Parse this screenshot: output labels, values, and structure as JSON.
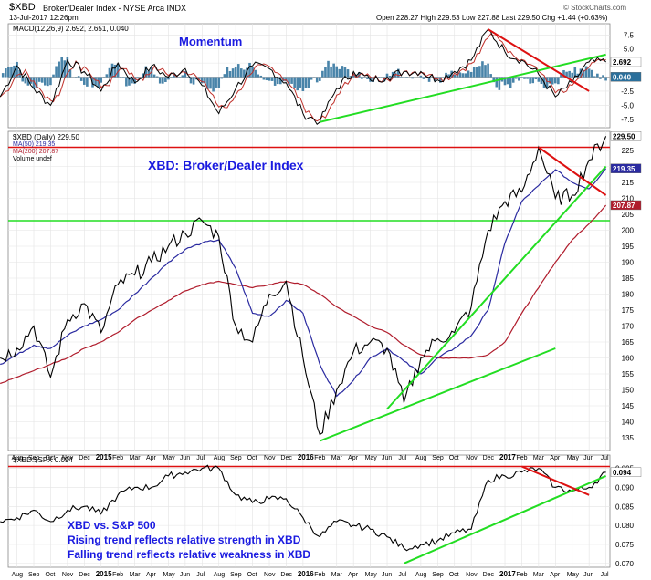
{
  "header": {
    "symbol": "$XBD",
    "name": "Broker/Dealer Index - NYSE Arca INDX",
    "date": "13-Jul-2017 12:26pm",
    "quote": "Open 228.27  High 229.53  Low 227.88  Last 229.50  Chg +1.44 (+0.63%)",
    "logo": "© StockCharts.com"
  },
  "colors": {
    "price": "#000000",
    "ma50": "#2a2aa0",
    "ma200": "#b01c2c",
    "trend_up": "#22dd22",
    "trend_down": "#dd1111",
    "macd_hist": "#2a6f9b",
    "annotation": "#1a1ae0"
  },
  "macd_panel": {
    "legend": "MACD(12,26,9) 2.692, 2.651, 0.040",
    "annotation": "Momentum",
    "value_labels": [
      "2.692",
      "0.040"
    ]
  },
  "price_panel": {
    "legend": [
      "$XBD (Daily) 229.50",
      "MA(50) 219.35",
      "MA(200) 207.87",
      "Volume undef"
    ],
    "annotation": "XBD: Broker/Dealer Index",
    "value_labels": [
      "229.50",
      "219.35",
      "207.87"
    ]
  },
  "ratio_panel": {
    "legend": "$XBD:$SPX 0.094",
    "annotation_lines": [
      "XBD vs. S&P 500",
      "Rising trend reflects relative strength in XBD",
      "Falling trend reflects relative weakness in XBD"
    ],
    "value_labels": [
      "0.094"
    ]
  },
  "chart_data": [
    {
      "type": "line",
      "title": "MACD(12,26,9)",
      "ylim": [
        -9,
        9.5
      ],
      "yticks": [
        "7.5",
        "5.0",
        "2.5",
        "0.0",
        "-2.5",
        "-5.0",
        "-7.5"
      ],
      "macd_points": [
        [
          "2014-07",
          -3.5
        ],
        [
          "2014-08",
          2
        ],
        [
          "2014-09",
          -2
        ],
        [
          "2014-10",
          -5
        ],
        [
          "2014-11",
          3
        ],
        [
          "2014-12",
          1
        ],
        [
          "2015-01",
          -2.5
        ],
        [
          "2015-02",
          2.5
        ],
        [
          "2015-03",
          -1
        ],
        [
          "2015-04",
          2
        ],
        [
          "2015-05",
          0
        ],
        [
          "2015-06",
          1.5
        ],
        [
          "2015-07",
          -1.5
        ],
        [
          "2015-08",
          -6.5
        ],
        [
          "2015-09",
          -2
        ],
        [
          "2015-10",
          2
        ],
        [
          "2015-11",
          1.5
        ],
        [
          "2015-12",
          -1
        ],
        [
          "2016-01",
          -6.5
        ],
        [
          "2016-02",
          -8
        ],
        [
          "2016-03",
          -2
        ],
        [
          "2016-04",
          1
        ],
        [
          "2016-05",
          -0.5
        ],
        [
          "2016-06",
          0
        ],
        [
          "2016-07",
          1
        ],
        [
          "2016-08",
          1
        ],
        [
          "2016-09",
          -0.5
        ],
        [
          "2016-10",
          1
        ],
        [
          "2016-11",
          3
        ],
        [
          "2016-12",
          8.5
        ],
        [
          "2017-01",
          4.5
        ],
        [
          "2017-02",
          3
        ],
        [
          "2017-03",
          0.5
        ],
        [
          "2017-04",
          -3.5
        ],
        [
          "2017-05",
          -1
        ],
        [
          "2017-06",
          2.7
        ],
        [
          "2017-07",
          2.69
        ]
      ],
      "trendlines": [
        {
          "color": "trend_up",
          "from": [
            "2016-02",
            -8
          ],
          "to": [
            "2017-07",
            4
          ]
        },
        {
          "color": "trend_down",
          "from": [
            "2016-12",
            8.5
          ],
          "to": [
            "2017-06",
            -2.5
          ]
        }
      ]
    },
    {
      "type": "line",
      "title": "XBD: Broker/Dealer Index",
      "ylim": [
        131,
        231
      ],
      "yticks": [
        "225",
        "220",
        "215",
        "210",
        "205",
        "200",
        "195",
        "190",
        "185",
        "180",
        "175",
        "170",
        "165",
        "160",
        "155",
        "150",
        "145",
        "140",
        "135"
      ],
      "x_tick_labels": [
        "Aug",
        "Sep",
        "Oct",
        "Nov",
        "Dec",
        "2015",
        "Feb",
        "Mar",
        "Apr",
        "May",
        "Jun",
        "Jul",
        "Aug",
        "Sep",
        "Oct",
        "Nov",
        "Dec",
        "2016",
        "Feb",
        "Mar",
        "Apr",
        "May",
        "Jun",
        "Jul",
        "Aug",
        "Sep",
        "Oct",
        "Nov",
        "Dec",
        "2017",
        "Feb",
        "Mar",
        "Apr",
        "May",
        "Jun",
        "Jul"
      ],
      "series": [
        {
          "name": "$XBD",
          "points": [
            [
              "2014-07",
              160
            ],
            [
              "2014-08",
              163
            ],
            [
              "2014-09",
              170
            ],
            [
              "2014-10",
              154
            ],
            [
              "2014-11",
              172
            ],
            [
              "2014-12",
              177
            ],
            [
              "2015-01",
              168
            ],
            [
              "2015-02",
              183
            ],
            [
              "2015-03",
              186
            ],
            [
              "2015-04",
              190
            ],
            [
              "2015-05",
              195
            ],
            [
              "2015-06",
              199
            ],
            [
              "2015-07",
              203
            ],
            [
              "2015-08",
              198
            ],
            [
              "2015-09",
              170
            ],
            [
              "2015-10",
              165
            ],
            [
              "2015-11",
              180
            ],
            [
              "2015-12",
              184
            ],
            [
              "2016-01",
              160
            ],
            [
              "2016-02",
              136
            ],
            [
              "2016-03",
              150
            ],
            [
              "2016-04",
              162
            ],
            [
              "2016-05",
              165
            ],
            [
              "2016-06",
              163
            ],
            [
              "2016-07",
              146
            ],
            [
              "2016-08",
              160
            ],
            [
              "2016-09",
              166
            ],
            [
              "2016-10",
              168
            ],
            [
              "2016-11",
              176
            ],
            [
              "2016-12",
              200
            ],
            [
              "2017-01",
              209
            ],
            [
              "2017-02",
              212
            ],
            [
              "2017-03",
              226
            ],
            [
              "2017-04",
              210
            ],
            [
              "2017-05",
              211
            ],
            [
              "2017-06",
              222
            ],
            [
              "2017-07",
              229.5
            ]
          ]
        },
        {
          "name": "MA(50)",
          "points": [
            [
              "2014-07",
              158
            ],
            [
              "2014-08",
              161
            ],
            [
              "2014-09",
              164
            ],
            [
              "2014-10",
              163
            ],
            [
              "2014-11",
              167
            ],
            [
              "2014-12",
              170
            ],
            [
              "2015-01",
              172
            ],
            [
              "2015-02",
              175
            ],
            [
              "2015-03",
              180
            ],
            [
              "2015-04",
              185
            ],
            [
              "2015-05",
              190
            ],
            [
              "2015-06",
              194
            ],
            [
              "2015-07",
              196
            ],
            [
              "2015-08",
              197
            ],
            [
              "2015-09",
              188
            ],
            [
              "2015-10",
              174
            ],
            [
              "2015-11",
              173
            ],
            [
              "2015-12",
              178
            ],
            [
              "2016-01",
              174
            ],
            [
              "2016-02",
              158
            ],
            [
              "2016-03",
              148
            ],
            [
              "2016-04",
              153
            ],
            [
              "2016-05",
              160
            ],
            [
              "2016-06",
              163
            ],
            [
              "2016-07",
              159
            ],
            [
              "2016-08",
              155
            ],
            [
              "2016-09",
              160
            ],
            [
              "2016-10",
              163
            ],
            [
              "2016-11",
              167
            ],
            [
              "2016-12",
              175
            ],
            [
              "2017-01",
              196
            ],
            [
              "2017-02",
              209
            ],
            [
              "2017-03",
              214
            ],
            [
              "2017-04",
              219
            ],
            [
              "2017-05",
              215
            ],
            [
              "2017-06",
              213
            ],
            [
              "2017-07",
              219.35
            ]
          ]
        },
        {
          "name": "MA(200)",
          "points": [
            [
              "2014-07",
              152
            ],
            [
              "2014-08",
              154
            ],
            [
              "2014-09",
              156
            ],
            [
              "2014-10",
              158
            ],
            [
              "2014-11",
              160
            ],
            [
              "2014-12",
              163
            ],
            [
              "2015-01",
              165
            ],
            [
              "2015-02",
              168
            ],
            [
              "2015-03",
              172
            ],
            [
              "2015-04",
              175
            ],
            [
              "2015-05",
              178
            ],
            [
              "2015-06",
              181
            ],
            [
              "2015-07",
              183
            ],
            [
              "2015-08",
              184
            ],
            [
              "2015-09",
              183
            ],
            [
              "2015-10",
              182
            ],
            [
              "2015-11",
              183
            ],
            [
              "2015-12",
              184
            ],
            [
              "2016-01",
              183
            ],
            [
              "2016-02",
              180
            ],
            [
              "2016-03",
              176
            ],
            [
              "2016-04",
              173
            ],
            [
              "2016-05",
              170
            ],
            [
              "2016-06",
              168
            ],
            [
              "2016-07",
              164
            ],
            [
              "2016-08",
              161
            ],
            [
              "2016-09",
              160
            ],
            [
              "2016-10",
              160
            ],
            [
              "2016-11",
              160
            ],
            [
              "2016-12",
              161
            ],
            [
              "2017-01",
              165
            ],
            [
              "2017-02",
              174
            ],
            [
              "2017-03",
              182
            ],
            [
              "2017-04",
              190
            ],
            [
              "2017-05",
              197
            ],
            [
              "2017-06",
              202
            ],
            [
              "2017-07",
              207.87
            ]
          ]
        }
      ],
      "horizontal_lines": [
        {
          "color": "trend_down",
          "y": 226
        },
        {
          "color": "trend_up",
          "y": 203
        }
      ],
      "trendlines": [
        {
          "color": "trend_up",
          "from": [
            "2016-02",
            134
          ],
          "to": [
            "2017-04",
            163
          ]
        },
        {
          "color": "trend_up",
          "from": [
            "2016-06",
            144
          ],
          "to": [
            "2017-07",
            220
          ]
        },
        {
          "color": "trend_down",
          "from": [
            "2017-03",
            226
          ],
          "to": [
            "2017-07",
            211
          ]
        }
      ]
    },
    {
      "type": "line",
      "title": "$XBD:$SPX",
      "ylim": [
        0.069,
        0.0985
      ],
      "yticks": [
        "0.095",
        "0.090",
        "0.085",
        "0.080",
        "0.075",
        "0.070"
      ],
      "series": [
        {
          "name": "$XBD:$SPX",
          "points": [
            [
              "2014-07",
              0.081
            ],
            [
              "2014-08",
              0.082
            ],
            [
              "2014-09",
              0.084
            ],
            [
              "2014-10",
              0.081
            ],
            [
              "2014-11",
              0.084
            ],
            [
              "2014-12",
              0.085
            ],
            [
              "2015-01",
              0.083
            ],
            [
              "2015-02",
              0.088
            ],
            [
              "2015-03",
              0.09
            ],
            [
              "2015-04",
              0.09
            ],
            [
              "2015-05",
              0.093
            ],
            [
              "2015-06",
              0.094
            ],
            [
              "2015-07",
              0.095
            ],
            [
              "2015-08",
              0.095
            ],
            [
              "2015-09",
              0.088
            ],
            [
              "2015-10",
              0.086
            ],
            [
              "2015-11",
              0.087
            ],
            [
              "2015-12",
              0.087
            ],
            [
              "2016-01",
              0.082
            ],
            [
              "2016-02",
              0.077
            ],
            [
              "2016-03",
              0.081
            ],
            [
              "2016-04",
              0.08
            ],
            [
              "2016-05",
              0.079
            ],
            [
              "2016-06",
              0.077
            ],
            [
              "2016-07",
              0.074
            ],
            [
              "2016-08",
              0.075
            ],
            [
              "2016-09",
              0.076
            ],
            [
              "2016-10",
              0.078
            ],
            [
              "2016-11",
              0.079
            ],
            [
              "2016-12",
              0.092
            ],
            [
              "2017-01",
              0.093
            ],
            [
              "2017-02",
              0.094
            ],
            [
              "2017-03",
              0.095
            ],
            [
              "2017-04",
              0.09
            ],
            [
              "2017-05",
              0.089
            ],
            [
              "2017-06",
              0.09
            ],
            [
              "2017-07",
              0.094
            ]
          ]
        }
      ],
      "horizontal_lines": [
        {
          "color": "trend_down",
          "y": 0.0955
        }
      ],
      "trendlines": [
        {
          "color": "trend_up",
          "from": [
            "2016-07",
            0.07
          ],
          "to": [
            "2017-07",
            0.093
          ]
        },
        {
          "color": "trend_down",
          "from": [
            "2017-02",
            0.0955
          ],
          "to": [
            "2017-06",
            0.088
          ]
        }
      ]
    }
  ]
}
